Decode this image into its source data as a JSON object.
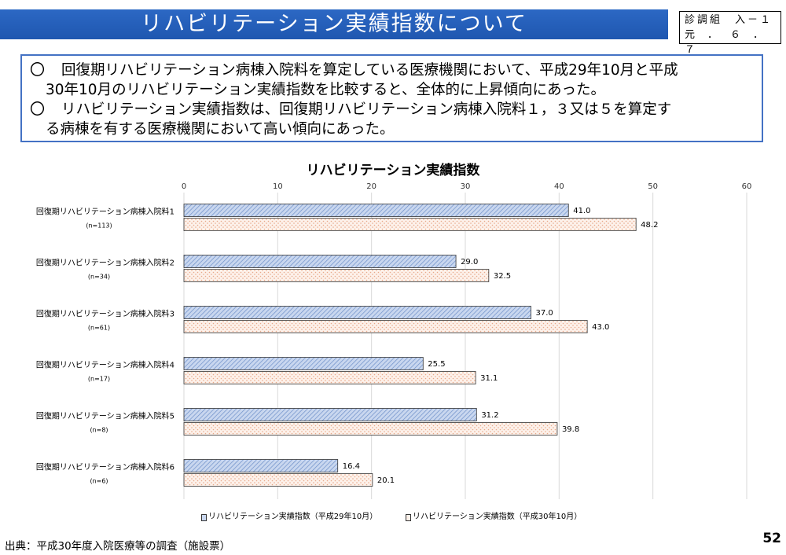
{
  "header": {
    "title": "リハビリテーション実績指数について",
    "code_line1": "診調組　入－１",
    "code_line2": "元．６．７"
  },
  "summary": {
    "bullet_mark": "〇",
    "bullets": [
      {
        "line1": "回復期リハビリテーション病棟入院料を算定している医療機関において、平成29年10月と平成",
        "line2": "30年10月のリハビリテーション実績指数を比較すると、全体的に上昇傾向にあった。"
      },
      {
        "line1": "リハビリテーション実績指数は、回復期リハビリテーション病棟入院料１，３又は５を算定す",
        "line2": "る病棟を有する医療機関において高い傾向にあった。"
      }
    ]
  },
  "chart_data": {
    "type": "bar",
    "orientation": "horizontal",
    "title": "リハビリテーション実績指数",
    "xlim": [
      0,
      60
    ],
    "xticks": [
      "0",
      "10",
      "20",
      "30",
      "40",
      "50",
      "60"
    ],
    "grid": "vertical",
    "categories": [
      {
        "label": "回復期リハビリテーション病棟入院料1",
        "n": "(n=113)"
      },
      {
        "label": "回復期リハビリテーション病棟入院料2",
        "n": "(n=34)"
      },
      {
        "label": "回復期リハビリテーション病棟入院料3",
        "n": "(n=61)"
      },
      {
        "label": "回復期リハビリテーション病棟入院料4",
        "n": "(n=17)"
      },
      {
        "label": "回復期リハビリテーション病棟入院料5",
        "n": "(n=8)"
      },
      {
        "label": "回復期リハビリテーション病棟入院料6",
        "n": "(n=6)"
      }
    ],
    "series": [
      {
        "name": "リハビリテーション実績指数（平成29年10月）",
        "values": [
          41.0,
          29.0,
          37.0,
          25.5,
          31.2,
          16.4
        ],
        "labels": [
          "41.0",
          "29.0",
          "37.0",
          "25.5",
          "31.2",
          "16.4"
        ],
        "color": "#b9cbe8",
        "pattern": "diagonal-hatch"
      },
      {
        "name": "リハビリテーション実績指数（平成30年10月）",
        "values": [
          48.2,
          32.5,
          43.0,
          31.1,
          39.8,
          20.1
        ],
        "labels": [
          "48.2",
          "32.5",
          "43.0",
          "31.1",
          "39.8",
          "20.1"
        ],
        "color": "#fbe4d5",
        "pattern": "dots"
      }
    ],
    "legend_position": "bottom"
  },
  "footer": {
    "source": "出典：平成30年度入院医療等の調査（施設票）",
    "page_number": "52"
  }
}
